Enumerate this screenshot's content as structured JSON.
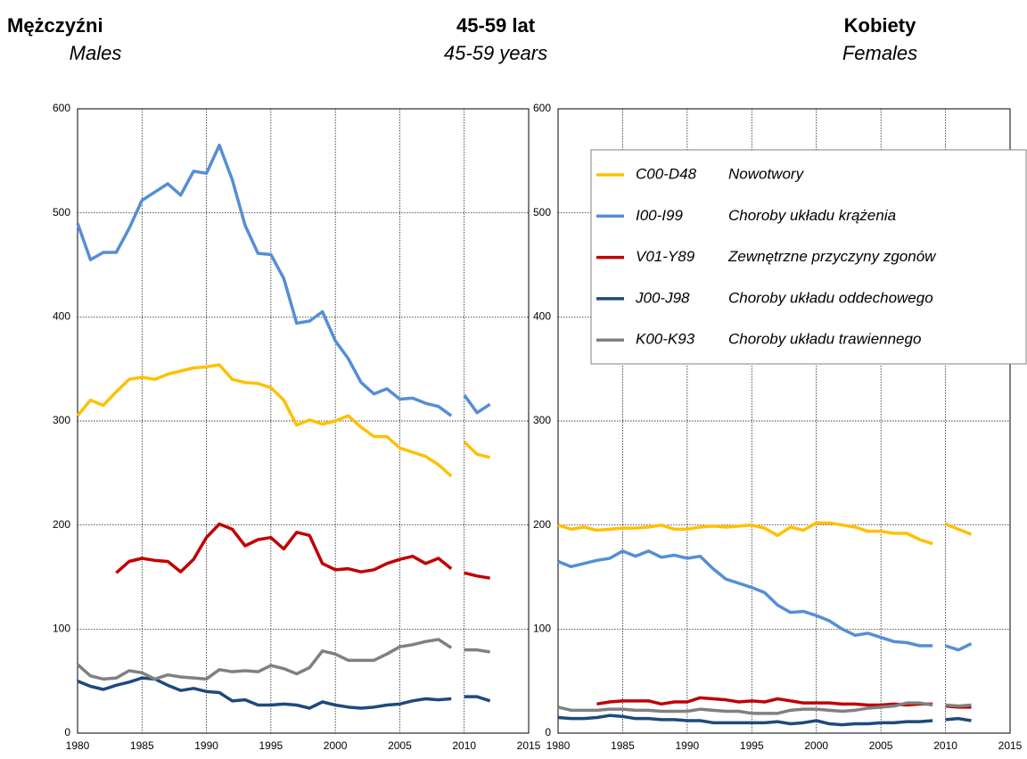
{
  "header": {
    "left": {
      "title": "Mężczyźni",
      "subtitle": "Males"
    },
    "center": {
      "title": "45-59 lat",
      "subtitle": "45-59 years"
    },
    "right": {
      "title": "Kobiety",
      "subtitle": "Females"
    }
  },
  "chart_data": [
    {
      "type": "line",
      "x": [
        1980,
        1981,
        1982,
        1983,
        1984,
        1985,
        1986,
        1987,
        1988,
        1989,
        1990,
        1991,
        1992,
        1993,
        1994,
        1995,
        1996,
        1997,
        1998,
        1999,
        2000,
        2001,
        2002,
        2003,
        2004,
        2005,
        2006,
        2007,
        2008,
        2009,
        2010,
        2011,
        2012
      ],
      "break_after": 2009,
      "xlim": [
        1980,
        2015
      ],
      "xticks": [
        1980,
        1985,
        1990,
        1995,
        2000,
        2005,
        2010,
        2015
      ],
      "ylim": [
        0,
        600
      ],
      "yticks": [
        0,
        100,
        200,
        300,
        400,
        500,
        600
      ],
      "grid": true,
      "legend": false,
      "series": [
        {
          "color": "#ffc000",
          "values": [
            305,
            320,
            315,
            328,
            340,
            342,
            340,
            345,
            348,
            351,
            352,
            354,
            340,
            337,
            336,
            332,
            320,
            296,
            301,
            297,
            300,
            305,
            294,
            285,
            285,
            274,
            270,
            266,
            258,
            247,
            280,
            268,
            265
          ]
        },
        {
          "color": "#558ed5",
          "values": [
            490,
            455,
            462,
            462,
            485,
            512,
            520,
            528,
            517,
            540,
            538,
            565,
            532,
            488,
            461,
            460,
            437,
            394,
            396,
            405,
            377,
            360,
            337,
            326,
            331,
            321,
            322,
            317,
            314,
            305,
            325,
            308,
            316
          ]
        },
        {
          "color": "#c00000",
          "values": [
            null,
            null,
            null,
            154,
            165,
            168,
            166,
            165,
            155,
            167,
            188,
            201,
            196,
            180,
            186,
            188,
            177,
            193,
            190,
            163,
            157,
            158,
            155,
            157,
            163,
            167,
            170,
            163,
            168,
            158,
            154,
            151,
            149
          ]
        },
        {
          "color": "#1f497d",
          "values": [
            50,
            45,
            42,
            46,
            49,
            53,
            52,
            46,
            41,
            43,
            40,
            39,
            31,
            32,
            27,
            27,
            28,
            27,
            24,
            30,
            27,
            25,
            24,
            25,
            27,
            28,
            31,
            33,
            32,
            33,
            35,
            35,
            31
          ]
        },
        {
          "color": "#808080",
          "values": [
            66,
            55,
            52,
            53,
            60,
            58,
            52,
            56,
            54,
            53,
            52,
            61,
            59,
            60,
            59,
            65,
            62,
            57,
            63,
            79,
            76,
            70,
            70,
            70,
            76,
            83,
            85,
            88,
            90,
            82,
            80,
            80,
            78
          ]
        }
      ]
    },
    {
      "type": "line",
      "x": [
        1980,
        1981,
        1982,
        1983,
        1984,
        1985,
        1986,
        1987,
        1988,
        1989,
        1990,
        1991,
        1992,
        1993,
        1994,
        1995,
        1996,
        1997,
        1998,
        1999,
        2000,
        2001,
        2002,
        2003,
        2004,
        2005,
        2006,
        2007,
        2008,
        2009,
        2010,
        2011,
        2012
      ],
      "break_after": 2009,
      "xlim": [
        1980,
        2015
      ],
      "xticks": [
        1980,
        1985,
        1990,
        1995,
        2000,
        2005,
        2010,
        2015
      ],
      "ylim": [
        0,
        600
      ],
      "yticks": [
        0,
        100,
        200,
        300,
        400,
        500,
        600
      ],
      "grid": true,
      "legend": "upper right",
      "series": [
        {
          "code": "C00-D48",
          "name": "Nowotwory",
          "color": "#ffc000",
          "values": [
            200,
            196,
            198,
            195,
            196,
            197,
            197,
            198,
            200,
            196,
            196,
            198,
            199,
            198,
            199,
            200,
            197,
            190,
            198,
            195,
            202,
            202,
            200,
            198,
            194,
            194,
            192,
            192,
            186,
            182,
            201,
            196,
            191
          ]
        },
        {
          "code": "I00-I99",
          "name": "Choroby układu krążenia",
          "color": "#558ed5",
          "values": [
            165,
            160,
            163,
            166,
            168,
            175,
            170,
            175,
            169,
            171,
            168,
            170,
            158,
            148,
            144,
            140,
            135,
            123,
            116,
            117,
            113,
            108,
            100,
            94,
            96,
            92,
            88,
            87,
            84,
            84,
            84,
            80,
            86
          ]
        },
        {
          "code": "V01-Y89",
          "name": "Zewnętrzne przyczyny zgonów",
          "color": "#c00000",
          "values": [
            null,
            null,
            null,
            28,
            30,
            31,
            31,
            31,
            28,
            30,
            30,
            34,
            33,
            32,
            30,
            31,
            30,
            33,
            31,
            29,
            29,
            29,
            28,
            28,
            27,
            27,
            28,
            27,
            28,
            28,
            26,
            25,
            25
          ]
        },
        {
          "code": "J00-J98",
          "name": "Choroby układu oddechowego",
          "color": "#1f497d",
          "values": [
            15,
            14,
            14,
            15,
            17,
            16,
            14,
            14,
            13,
            13,
            12,
            12,
            10,
            10,
            10,
            10,
            10,
            11,
            9,
            10,
            12,
            9,
            8,
            9,
            9,
            10,
            10,
            11,
            11,
            12,
            13,
            14,
            12
          ]
        },
        {
          "code": "K00-K93",
          "name": "Choroby układu trawiennego",
          "color": "#808080",
          "values": [
            25,
            22,
            22,
            22,
            23,
            23,
            22,
            22,
            21,
            21,
            21,
            23,
            22,
            21,
            21,
            19,
            19,
            19,
            22,
            23,
            23,
            22,
            21,
            22,
            24,
            25,
            26,
            29,
            29,
            27,
            27,
            26,
            27
          ]
        }
      ]
    }
  ]
}
